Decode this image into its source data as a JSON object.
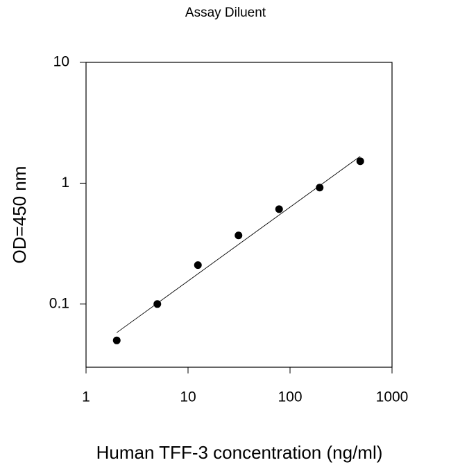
{
  "chart_data": {
    "type": "scatter",
    "title": "Assay Diluent",
    "x_label": "Human TFF-3 concentration (ng/ml)",
    "y_label": "OD=450 nm",
    "log_x": true,
    "log_y": true,
    "xlim": [
      1,
      1000
    ],
    "ylim": [
      0.03,
      10
    ],
    "xticks": [
      1,
      10,
      100,
      1000
    ],
    "yticks": [
      0.1,
      1,
      10
    ],
    "series": [
      {
        "color": "#000000",
        "x": [
          2,
          5,
          12.5,
          31.25,
          78.125,
          195.3,
          488.3
        ],
        "values": [
          0.05,
          0.1,
          0.21,
          0.37,
          0.61,
          0.92,
          1.52
        ]
      },
      {
        "color": "#000000",
        "line": true,
        "x": [
          2,
          488.3
        ],
        "values": [
          0.058,
          1.67
        ]
      }
    ]
  }
}
